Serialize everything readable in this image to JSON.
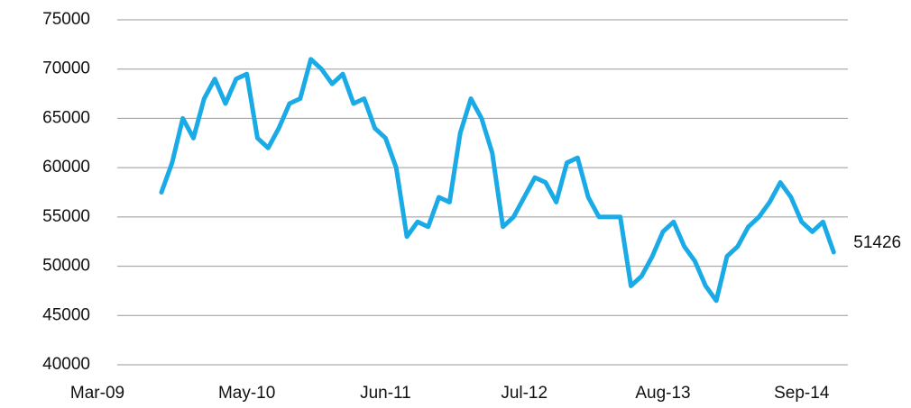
{
  "chart_data": {
    "type": "line",
    "categories": [
      "Mar-09",
      null,
      null,
      null,
      null,
      null,
      null,
      null,
      null,
      null,
      null,
      null,
      null,
      null,
      "May-10",
      null,
      null,
      null,
      null,
      null,
      null,
      null,
      null,
      null,
      null,
      null,
      null,
      "Jun-11",
      null,
      null,
      null,
      null,
      null,
      null,
      null,
      null,
      null,
      null,
      null,
      null,
      "Jul-12",
      null,
      null,
      null,
      null,
      null,
      null,
      null,
      null,
      null,
      null,
      null,
      null,
      "Aug-13",
      null,
      null,
      null,
      null,
      null,
      null,
      null,
      null,
      null,
      null,
      null,
      null,
      "Sep-14",
      null,
      null,
      null
    ],
    "series": [
      {
        "color": "#1aabe6",
        "values": [
          null,
          null,
          null,
          null,
          null,
          null,
          57500,
          60500,
          65000,
          63000,
          67000,
          69000,
          66500,
          69000,
          69500,
          63000,
          62000,
          64000,
          66500,
          67000,
          71000,
          70000,
          68500,
          69500,
          66500,
          67000,
          64000,
          63000,
          60000,
          53000,
          54500,
          54000,
          57000,
          56500,
          63500,
          67000,
          65000,
          61500,
          54000,
          55000,
          57000,
          59000,
          58500,
          56500,
          60500,
          61000,
          57000,
          55000,
          55000,
          55000,
          48000,
          49000,
          51000,
          53500,
          54500,
          52000,
          50500,
          48000,
          46500,
          51000,
          52000,
          54000,
          55000,
          56500,
          58500,
          57000,
          54500,
          53500,
          54500,
          51426
        ]
      }
    ],
    "ylim": [
      40000,
      75000
    ],
    "yticks": [
      40000,
      45000,
      50000,
      55000,
      60000,
      65000,
      70000,
      75000
    ],
    "grid": true
  }
}
